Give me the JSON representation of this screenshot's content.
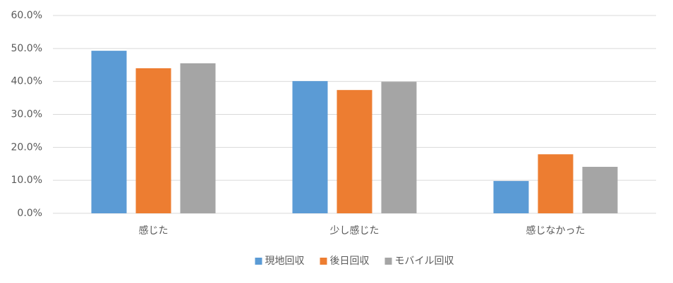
{
  "chart_data": {
    "type": "bar",
    "categories": [
      "感じた",
      "少し感じた",
      "感じなかった"
    ],
    "series": [
      {
        "name": "現地回収",
        "color": "#5b9bd5",
        "values": [
          49.3,
          40.1,
          9.8
        ]
      },
      {
        "name": "後日回収",
        "color": "#ed7d31",
        "values": [
          44.0,
          37.4,
          17.9
        ]
      },
      {
        "name": "モバイル回収",
        "color": "#a5a5a5",
        "values": [
          45.5,
          39.9,
          14.1
        ]
      }
    ],
    "ylim": [
      0,
      60
    ],
    "yticks": [
      {
        "value": 0,
        "label": "0.0%"
      },
      {
        "value": 10,
        "label": "10.0%"
      },
      {
        "value": 20,
        "label": "20.0%"
      },
      {
        "value": 30,
        "label": "30.0%"
      },
      {
        "value": 40,
        "label": "40.0%"
      },
      {
        "value": 50,
        "label": "50.0%"
      },
      {
        "value": 60,
        "label": "60.0%"
      }
    ],
    "grid": true,
    "legend": "bottom"
  }
}
